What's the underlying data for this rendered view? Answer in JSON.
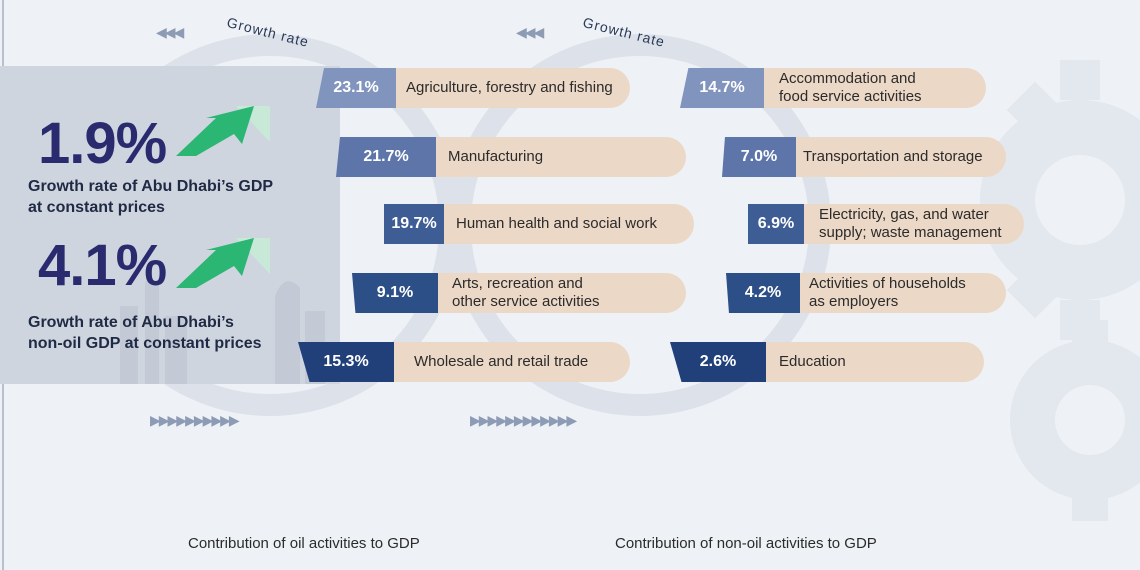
{
  "headline": {
    "gdp": {
      "value": "1.9%",
      "label_line1": "Growth rate of Abu Dhabi’s GDP",
      "label_line2": "at constant prices",
      "arrow_icon": "up-arrow-icon"
    },
    "non_oil_gdp": {
      "value": "4.1%",
      "label_line1": "Growth rate of Abu Dhabi’s",
      "label_line2": "non-oil GDP at constant prices",
      "arrow_icon": "up-arrow-icon"
    }
  },
  "ring_label": "Growth rate",
  "oil_activities": [
    {
      "rate": "23.1%",
      "line1": "Agriculture, forestry and fishing",
      "line2": ""
    },
    {
      "rate": "21.7%",
      "line1": "Manufacturing",
      "line2": ""
    },
    {
      "rate": "19.7%",
      "line1": "Human health and social work",
      "line2": ""
    },
    {
      "rate": "9.1%",
      "line1": "Arts, recreation and",
      "line2": "other service activities"
    },
    {
      "rate": "15.3%",
      "line1": "Wholesale and retail trade",
      "line2": ""
    }
  ],
  "non_oil_activities": [
    {
      "rate": "14.7%",
      "line1": "Accommodation and",
      "line2": "food service activities"
    },
    {
      "rate": "7.0%",
      "line1": "Transportation and storage",
      "line2": ""
    },
    {
      "rate": "6.9%",
      "line1": "Electricity, gas, and water",
      "line2": "supply; waste management"
    },
    {
      "rate": "4.2%",
      "line1": "Activities of households",
      "line2": "as employers"
    },
    {
      "rate": "2.6%",
      "line1": "Education",
      "line2": ""
    }
  ],
  "captions": {
    "oil": "Contribution of oil activities to GDP",
    "non_oil": "Contribution of non-oil activities to GDP"
  },
  "colors": {
    "badge_shades": [
      "#8194be",
      "#5d75a8",
      "#3d5d94",
      "#2d4f87",
      "#21407a"
    ],
    "bar": "#ecd8c6",
    "kpi_text": "#2a2b6e",
    "arrow_green": "#2bb673",
    "ring": "#d9dfe8"
  }
}
